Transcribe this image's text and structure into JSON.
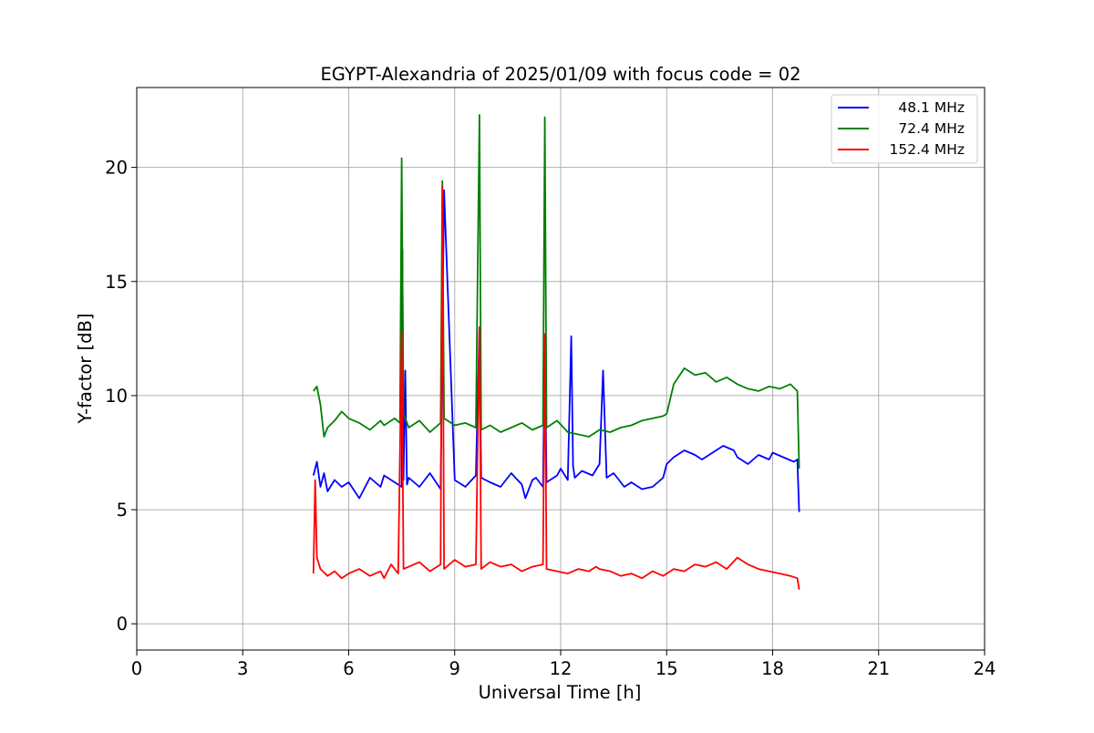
{
  "chart_data": {
    "type": "line",
    "title": "EGYPT-Alexandria of 2025/01/09 with focus code = 02",
    "xlabel": "Universal Time [h]",
    "ylabel": "Y-factor [dB]",
    "xlim": [
      0,
      24
    ],
    "ylim": [
      -1.15,
      23.5
    ],
    "xticks": [
      0,
      3,
      6,
      9,
      12,
      15,
      18,
      21,
      24
    ],
    "yticks": [
      0,
      5,
      10,
      15,
      20
    ],
    "grid": true,
    "legend_position": "top-right",
    "series": [
      {
        "name": "48.1 MHz",
        "color": "#0000ff",
        "x": [
          5.0,
          5.1,
          5.2,
          5.3,
          5.4,
          5.6,
          5.8,
          6.0,
          6.3,
          6.6,
          6.9,
          7.0,
          7.3,
          7.5,
          7.52,
          7.55,
          7.6,
          7.65,
          7.7,
          8.0,
          8.3,
          8.6,
          8.7,
          9.0,
          9.3,
          9.6,
          9.7,
          9.75,
          10.0,
          10.3,
          10.6,
          10.9,
          11.0,
          11.2,
          11.3,
          11.5,
          11.55,
          11.6,
          11.9,
          12.0,
          12.2,
          12.3,
          12.35,
          12.4,
          12.6,
          12.9,
          13.1,
          13.2,
          13.3,
          13.5,
          13.8,
          14.0,
          14.3,
          14.6,
          14.9,
          15.0,
          15.2,
          15.5,
          15.8,
          16.0,
          16.3,
          16.6,
          16.9,
          17.0,
          17.3,
          17.6,
          17.9,
          18.0,
          18.3,
          18.6,
          18.7,
          18.75
        ],
        "y": [
          6.5,
          7.1,
          6.0,
          6.6,
          5.8,
          6.3,
          6.0,
          6.2,
          5.5,
          6.4,
          6.0,
          6.5,
          6.2,
          6.0,
          16.4,
          6.3,
          11.1,
          6.1,
          6.4,
          6.0,
          6.6,
          5.9,
          19.0,
          6.3,
          6.0,
          6.5,
          13.0,
          6.4,
          6.2,
          6.0,
          6.6,
          6.1,
          5.5,
          6.3,
          6.4,
          6.0,
          12.6,
          6.2,
          6.5,
          6.8,
          6.3,
          12.6,
          6.9,
          6.4,
          6.7,
          6.5,
          7.0,
          11.1,
          6.4,
          6.6,
          6.0,
          6.2,
          5.9,
          6.0,
          6.4,
          7.0,
          7.3,
          7.6,
          7.4,
          7.2,
          7.5,
          7.8,
          7.6,
          7.3,
          7.0,
          7.4,
          7.2,
          7.5,
          7.3,
          7.1,
          7.2,
          4.9
        ]
      },
      {
        "name": "72.4 MHz",
        "color": "#008000",
        "x": [
          5.0,
          5.1,
          5.2,
          5.3,
          5.4,
          5.6,
          5.8,
          6.0,
          6.3,
          6.6,
          6.9,
          7.0,
          7.3,
          7.45,
          7.5,
          7.55,
          7.7,
          8.0,
          8.3,
          8.6,
          8.65,
          8.7,
          9.0,
          9.3,
          9.6,
          9.7,
          9.75,
          10.0,
          10.3,
          10.6,
          10.9,
          11.2,
          11.5,
          11.55,
          11.6,
          11.9,
          12.2,
          12.5,
          12.8,
          13.1,
          13.4,
          13.7,
          14.0,
          14.3,
          14.6,
          14.9,
          15.0,
          15.2,
          15.5,
          15.8,
          16.1,
          16.4,
          16.7,
          17.0,
          17.3,
          17.6,
          17.9,
          18.2,
          18.5,
          18.7,
          18.75
        ],
        "y": [
          10.2,
          10.4,
          9.6,
          8.2,
          8.6,
          8.9,
          9.3,
          9.0,
          8.8,
          8.5,
          8.9,
          8.7,
          9.0,
          8.8,
          20.4,
          9.2,
          8.6,
          8.9,
          8.4,
          8.8,
          19.4,
          9.0,
          8.7,
          8.8,
          8.6,
          22.3,
          8.5,
          8.7,
          8.4,
          8.6,
          8.8,
          8.5,
          8.7,
          22.2,
          8.6,
          8.9,
          8.4,
          8.3,
          8.2,
          8.5,
          8.4,
          8.6,
          8.7,
          8.9,
          9.0,
          9.1,
          9.2,
          10.5,
          11.2,
          10.9,
          11.0,
          10.6,
          10.8,
          10.5,
          10.3,
          10.2,
          10.4,
          10.3,
          10.5,
          10.2,
          6.8
        ]
      },
      {
        "name": "152.4 MHz",
        "color": "#ff0000",
        "x": [
          5.0,
          5.05,
          5.1,
          5.2,
          5.4,
          5.6,
          5.8,
          6.0,
          6.3,
          6.6,
          6.9,
          7.0,
          7.2,
          7.4,
          7.5,
          7.55,
          7.7,
          8.0,
          8.3,
          8.6,
          8.65,
          8.7,
          9.0,
          9.3,
          9.6,
          9.7,
          9.75,
          10.0,
          10.3,
          10.6,
          10.9,
          11.2,
          11.5,
          11.55,
          11.6,
          11.9,
          12.2,
          12.5,
          12.8,
          13.0,
          13.1,
          13.4,
          13.7,
          14.0,
          14.3,
          14.6,
          14.9,
          15.2,
          15.5,
          15.8,
          16.1,
          16.4,
          16.7,
          17.0,
          17.3,
          17.6,
          17.9,
          18.2,
          18.5,
          18.7,
          18.75
        ],
        "y": [
          2.2,
          6.3,
          2.9,
          2.4,
          2.1,
          2.3,
          2.0,
          2.2,
          2.4,
          2.1,
          2.3,
          2.0,
          2.6,
          2.2,
          12.8,
          2.4,
          2.5,
          2.7,
          2.3,
          2.6,
          19.2,
          2.4,
          2.8,
          2.5,
          2.6,
          13.0,
          2.4,
          2.7,
          2.5,
          2.6,
          2.3,
          2.5,
          2.6,
          12.7,
          2.4,
          2.3,
          2.2,
          2.4,
          2.3,
          2.5,
          2.4,
          2.3,
          2.1,
          2.2,
          2.0,
          2.3,
          2.1,
          2.4,
          2.3,
          2.6,
          2.5,
          2.7,
          2.4,
          2.9,
          2.6,
          2.4,
          2.3,
          2.2,
          2.1,
          2.0,
          1.5
        ]
      }
    ]
  }
}
